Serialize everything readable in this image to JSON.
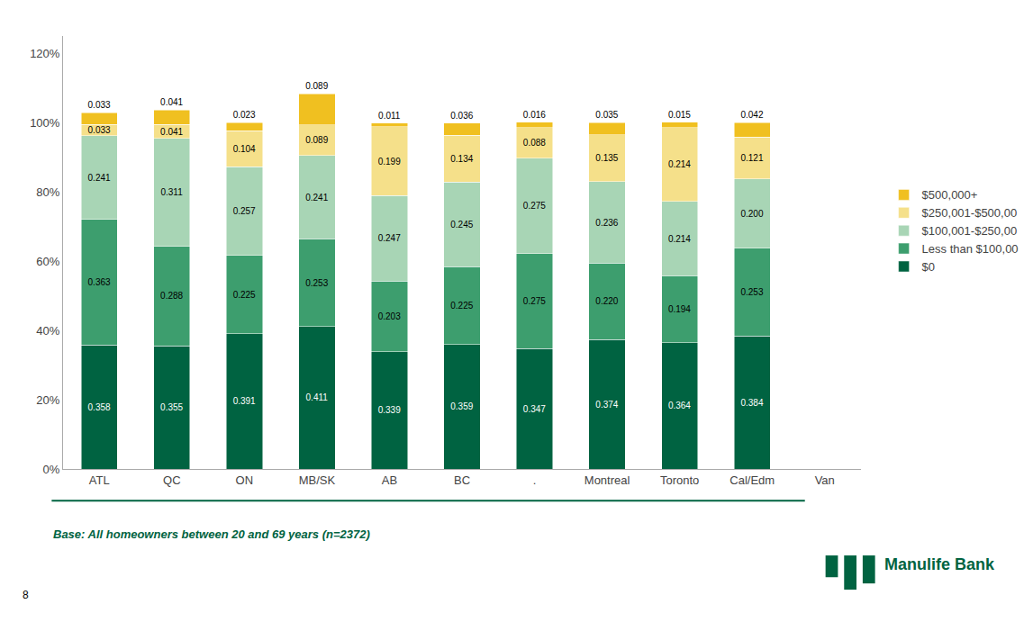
{
  "chart_data": {
    "type": "bar",
    "stacked": true,
    "data_labels": true,
    "grid": false,
    "legend": "right",
    "categories": [
      "ATL",
      "QC",
      "ON",
      "MB/SK",
      "AB",
      "BC",
      ".",
      "Montreal",
      "Toronto",
      "Cal/Edm",
      "Van"
    ],
    "series": [
      {
        "name": "$0",
        "color": "#006341",
        "values": [
          0.358,
          0.355,
          0.391,
          0.411,
          0.339,
          0.359,
          0.347,
          0.374,
          0.364,
          0.384,
          0.0
        ],
        "value_labels": [
          "0.358",
          "0.355",
          "0.391",
          "0.411",
          "0.339",
          "0.359",
          "0.347",
          "0.374",
          "0.364",
          "0.384",
          null
        ]
      },
      {
        "name": "Less than $100,00",
        "color": "#3d9e6e",
        "values": [
          0.363,
          0.288,
          0.225,
          0.253,
          0.203,
          0.225,
          0.275,
          0.22,
          0.194,
          0.253,
          0.0
        ],
        "value_labels": [
          "0.363",
          "0.288",
          "0.225",
          "0.253",
          "0.203",
          "0.225",
          "0.275",
          "0.220",
          "0.194",
          "0.253",
          null
        ]
      },
      {
        "name": "$100,001-$250,00",
        "color": "#a8d5b5",
        "values": [
          0.241,
          0.311,
          0.257,
          0.241,
          0.247,
          0.245,
          0.275,
          0.236,
          0.214,
          0.2,
          0.0
        ],
        "value_labels": [
          "0.241",
          "0.311",
          "0.257",
          "0.241",
          "0.247",
          "0.245",
          "0.275",
          "0.236",
          "0.214",
          "0.200",
          null
        ]
      },
      {
        "name": "$250,001-$500,00",
        "color": "#f5e08a",
        "values": [
          0.033,
          0.041,
          0.104,
          0.089,
          0.199,
          0.134,
          0.088,
          0.135,
          0.214,
          0.121,
          0.0
        ],
        "value_labels": [
          "0.033",
          "0.041",
          "0.104",
          "0.089",
          "0.199",
          "0.134",
          "0.088",
          "0.135",
          "0.214",
          "0.121",
          null
        ]
      },
      {
        "name": "$500,000+",
        "color": "#f0c020",
        "values": [
          0.033,
          0.041,
          0.023,
          0.089,
          0.011,
          0.036,
          0.016,
          0.035,
          0.015,
          0.042,
          0.0
        ],
        "value_labels": [
          "0.033",
          "0.041",
          "0.023",
          "0.089",
          "0.011",
          "0.036",
          "0.016",
          "0.035",
          "0.015",
          "0.042",
          null
        ]
      }
    ],
    "ylim": [
      0,
      1.25
    ],
    "yticks": [
      {
        "value": 0.0,
        "label": "0%"
      },
      {
        "value": 0.2,
        "label": "20%"
      },
      {
        "value": 0.4,
        "label": "40%"
      },
      {
        "value": 0.6,
        "label": "60%"
      },
      {
        "value": 0.8,
        "label": "80%"
      },
      {
        "value": 1.0,
        "label": "100%"
      },
      {
        "value": 1.2,
        "label": "120%"
      }
    ],
    "annotations": [
      "Base: All homeowners between 20 and 69 years (n=2372)",
      "8",
      "Manulife Bank"
    ]
  }
}
